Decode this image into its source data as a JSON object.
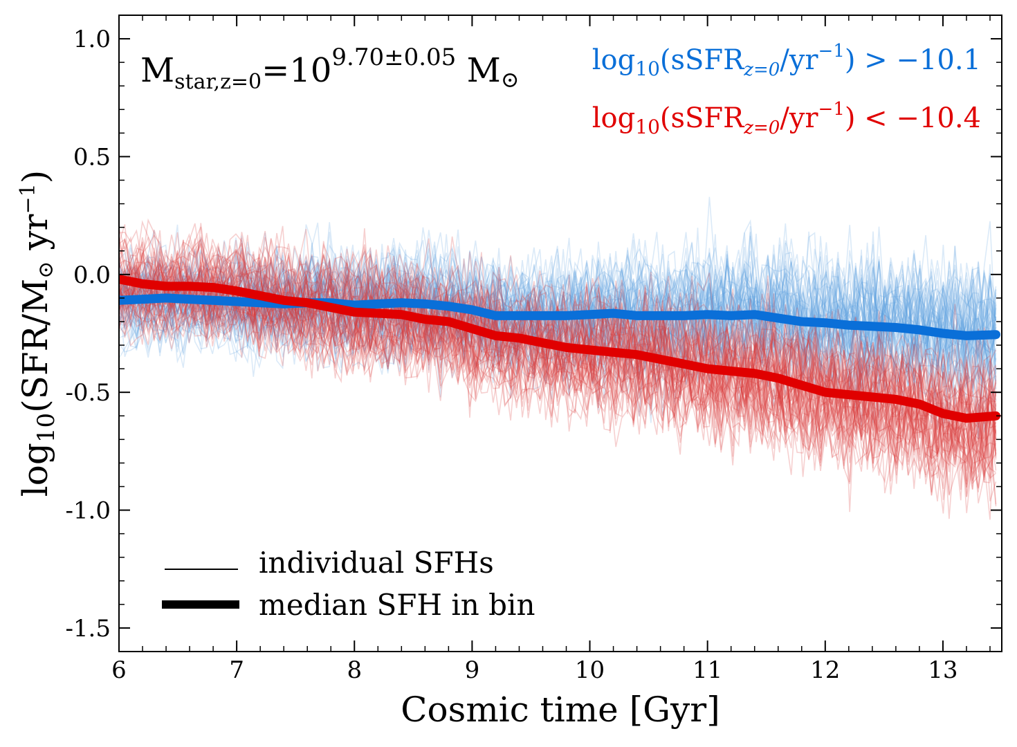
{
  "chart_data": {
    "type": "line",
    "xlabel": "Cosmic time [Gyr]",
    "ylabel": {
      "main": "log",
      "sub": "10",
      "body": "(SFR/M",
      "sun": "⊙",
      "unit": " yr",
      "sup": "−1",
      "close": ")"
    },
    "xlim": [
      6,
      13.5
    ],
    "ylim": [
      -1.6,
      1.1
    ],
    "x_ticks": [
      6,
      7,
      8,
      9,
      10,
      11,
      12,
      13
    ],
    "x_tick_labels": [
      "6",
      "7",
      "8",
      "9",
      "10",
      "11",
      "12",
      "13"
    ],
    "y_ticks": [
      1.0,
      0.5,
      0.0,
      -0.5,
      -1.0,
      -1.5
    ],
    "y_tick_labels": [
      "1.0",
      "0.5",
      "0.0",
      "-0.5",
      "-1.0",
      "-1.5"
    ],
    "grid": false,
    "mass_annotation": {
      "base": "M",
      "sub": "star,z=0",
      "eq": "=10",
      "sup": "9.70±0.05",
      "unit": " M",
      "sun": "⊙"
    },
    "series": [
      {
        "name": "log10(sSFR_z=0/yr^-1) > -10.1",
        "label_parts": {
          "main": "log",
          "sub1": "10",
          "body": "(sSFR",
          "sub2": "z=0",
          "mid": "/yr",
          "sup": "−1",
          "rel": ") > −10.1"
        },
        "color": "#0a6fd8",
        "individual_color": "#5a9fdf",
        "median_x": [
          6.0,
          6.2,
          6.4,
          6.6,
          6.8,
          7.0,
          7.2,
          7.4,
          7.6,
          7.8,
          8.0,
          8.2,
          8.4,
          8.6,
          8.8,
          9.0,
          9.2,
          9.4,
          9.6,
          9.8,
          10.0,
          10.2,
          10.4,
          10.6,
          10.8,
          11.0,
          11.2,
          11.4,
          11.6,
          11.8,
          12.0,
          12.2,
          12.4,
          12.6,
          12.8,
          13.0,
          13.2,
          13.45
        ],
        "median_y": [
          -0.11,
          -0.105,
          -0.1,
          -0.105,
          -0.11,
          -0.115,
          -0.12,
          -0.125,
          -0.12,
          -0.12,
          -0.13,
          -0.125,
          -0.12,
          -0.125,
          -0.135,
          -0.15,
          -0.175,
          -0.175,
          -0.175,
          -0.175,
          -0.17,
          -0.165,
          -0.175,
          -0.175,
          -0.175,
          -0.17,
          -0.175,
          -0.17,
          -0.185,
          -0.2,
          -0.205,
          -0.215,
          -0.22,
          -0.225,
          -0.235,
          -0.25,
          -0.26,
          -0.255
        ]
      },
      {
        "name": "log10(sSFR_z=0/yr^-1) < -10.4",
        "label_parts": {
          "main": "log",
          "sub1": "10",
          "body": "(sSFR",
          "sub2": "z=0",
          "mid": "/yr",
          "sup": "−1",
          "rel": ") < −10.4"
        },
        "color": "#e00000",
        "individual_color": "#d83a3a",
        "median_x": [
          6.0,
          6.2,
          6.4,
          6.6,
          6.8,
          7.0,
          7.2,
          7.4,
          7.6,
          7.8,
          8.0,
          8.2,
          8.4,
          8.6,
          8.8,
          9.0,
          9.2,
          9.4,
          9.6,
          9.8,
          10.0,
          10.2,
          10.4,
          10.6,
          10.8,
          11.0,
          11.2,
          11.4,
          11.6,
          11.8,
          12.0,
          12.2,
          12.4,
          12.6,
          12.8,
          13.0,
          13.2,
          13.45
        ],
        "median_y": [
          -0.02,
          -0.04,
          -0.05,
          -0.05,
          -0.055,
          -0.07,
          -0.09,
          -0.11,
          -0.12,
          -0.14,
          -0.16,
          -0.165,
          -0.17,
          -0.19,
          -0.2,
          -0.23,
          -0.26,
          -0.27,
          -0.29,
          -0.31,
          -0.32,
          -0.33,
          -0.34,
          -0.36,
          -0.38,
          -0.4,
          -0.41,
          -0.42,
          -0.44,
          -0.47,
          -0.5,
          -0.51,
          -0.52,
          -0.53,
          -0.55,
          -0.59,
          -0.61,
          -0.6
        ]
      }
    ],
    "legend": {
      "placement": "lower-left",
      "entries": [
        {
          "label": "individual SFHs",
          "style": "thin"
        },
        {
          "label": "median SFH in bin",
          "style": "thick"
        }
      ]
    }
  }
}
